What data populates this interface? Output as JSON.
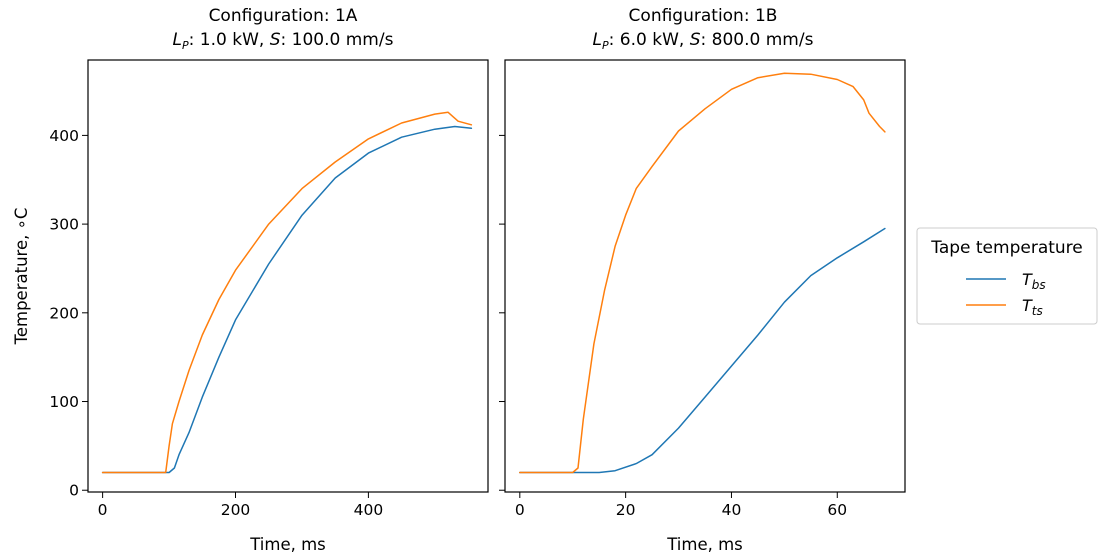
{
  "chart_data": [
    {
      "type": "line",
      "title_line1": "Configuration: 1A",
      "title_line2": {
        "lp_symbol": "L",
        "lp_sub": "P",
        "lp_value": ": 1.0 kW, ",
        "s_symbol": "S",
        "s_value": ": 100.0 mm/s"
      },
      "xlabel": "Time, ms",
      "ylabel": "Temperature, ∘C",
      "xlim": [
        -22,
        580
      ],
      "ylim": [
        -2,
        485
      ],
      "xticks": [
        0,
        200,
        400
      ],
      "yticks": [
        0,
        100,
        200,
        300,
        400
      ],
      "show_yticklabels": true,
      "series": [
        {
          "name": "T_bs",
          "color": "#1f77b4",
          "points": [
            [
              0,
              20
            ],
            [
              100,
              20
            ],
            [
              108,
              25
            ],
            [
              115,
              40
            ],
            [
              130,
              65
            ],
            [
              150,
              105
            ],
            [
              175,
              150
            ],
            [
              200,
              192
            ],
            [
              250,
              255
            ],
            [
              300,
              310
            ],
            [
              350,
              352
            ],
            [
              400,
              380
            ],
            [
              450,
              398
            ],
            [
              500,
              407
            ],
            [
              530,
              410
            ],
            [
              555,
              408
            ]
          ]
        },
        {
          "name": "T_ts",
          "color": "#ff7f0e",
          "points": [
            [
              0,
              20
            ],
            [
              95,
              20
            ],
            [
              100,
              50
            ],
            [
              105,
              75
            ],
            [
              115,
              100
            ],
            [
              130,
              135
            ],
            [
              150,
              175
            ],
            [
              175,
              215
            ],
            [
              200,
              248
            ],
            [
              250,
              300
            ],
            [
              300,
              340
            ],
            [
              350,
              370
            ],
            [
              400,
              396
            ],
            [
              450,
              414
            ],
            [
              500,
              424
            ],
            [
              520,
              426
            ],
            [
              535,
              416
            ],
            [
              555,
              412
            ]
          ]
        }
      ]
    },
    {
      "type": "line",
      "title_line1": "Configuration: 1B",
      "title_line2": {
        "lp_symbol": "L",
        "lp_sub": "P",
        "lp_value": ": 6.0 kW, ",
        "s_symbol": "S",
        "s_value": ": 800.0 mm/s"
      },
      "xlabel": "Time, ms",
      "ylabel": "",
      "xlim": [
        -2.8,
        72.8
      ],
      "ylim": [
        -2,
        485
      ],
      "xticks": [
        0,
        20,
        40,
        60
      ],
      "yticks": [
        0,
        100,
        200,
        300,
        400
      ],
      "show_yticklabels": false,
      "series": [
        {
          "name": "T_bs",
          "color": "#1f77b4",
          "points": [
            [
              0,
              20
            ],
            [
              15,
              20
            ],
            [
              18,
              22
            ],
            [
              22,
              30
            ],
            [
              25,
              40
            ],
            [
              30,
              70
            ],
            [
              35,
              105
            ],
            [
              40,
              140
            ],
            [
              45,
              175
            ],
            [
              50,
              212
            ],
            [
              55,
              242
            ],
            [
              60,
              262
            ],
            [
              65,
              280
            ],
            [
              69,
              295
            ]
          ]
        },
        {
          "name": "T_ts",
          "color": "#ff7f0e",
          "points": [
            [
              0,
              20
            ],
            [
              10,
              20
            ],
            [
              11,
              25
            ],
            [
              12,
              80
            ],
            [
              14,
              165
            ],
            [
              16,
              225
            ],
            [
              18,
              275
            ],
            [
              20,
              310
            ],
            [
              22,
              340
            ],
            [
              25,
              365
            ],
            [
              30,
              405
            ],
            [
              35,
              430
            ],
            [
              40,
              452
            ],
            [
              45,
              465
            ],
            [
              50,
              470
            ],
            [
              55,
              469
            ],
            [
              60,
              463
            ],
            [
              63,
              455
            ],
            [
              65,
              440
            ],
            [
              66,
              425
            ],
            [
              68,
              410
            ],
            [
              69,
              404
            ]
          ]
        }
      ]
    }
  ],
  "legend": {
    "title": "Tape temperature",
    "position": "right",
    "items": [
      {
        "symbol": "T",
        "sub": "bs",
        "color": "#1f77b4"
      },
      {
        "symbol": "T",
        "sub": "ts",
        "color": "#ff7f0e"
      }
    ]
  }
}
